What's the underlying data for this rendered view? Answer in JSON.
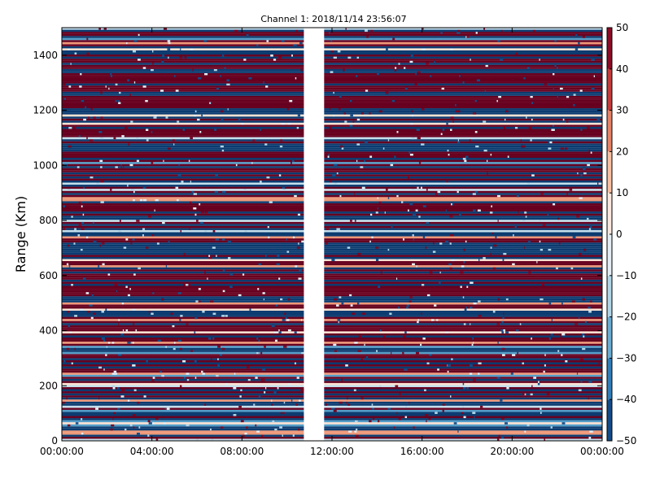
{
  "chart_data": {
    "type": "heatmap",
    "title": "Channel 1: 2018/11/14 23:56:07",
    "xlabel": "",
    "ylabel": "Range (Km)",
    "x_tick_labels": [
      "00:00:00",
      "04:00:00",
      "08:00:00",
      "12:00:00",
      "16:00:00",
      "20:00:00",
      "00:00:00"
    ],
    "xlim_hours": [
      0,
      24
    ],
    "y_ticks": [
      0,
      200,
      400,
      600,
      800,
      1000,
      1200,
      1400
    ],
    "ylim": [
      0,
      1500
    ],
    "colorbar": {
      "ticks": [
        50,
        40,
        30,
        20,
        10,
        0,
        -10,
        -20,
        -30,
        -40,
        -50
      ],
      "range": [
        -50,
        50
      ],
      "colormap": "RdBu_r"
    },
    "data_gap_hours": [
      10.75,
      11.65
    ],
    "range_bin_km": 7.5,
    "grid": false,
    "colors": {
      "high": "#67001f",
      "low": "#053061",
      "frame": "#000000"
    }
  }
}
